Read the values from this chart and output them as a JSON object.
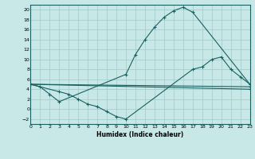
{
  "xlabel": "Humidex (Indice chaleur)",
  "bg_color": "#c8e8e8",
  "line_color": "#1a6060",
  "grid_color": "#a8cccc",
  "xlim": [
    0,
    23
  ],
  "ylim": [
    -3,
    21
  ],
  "xticks": [
    0,
    1,
    2,
    3,
    4,
    5,
    6,
    7,
    8,
    9,
    10,
    11,
    12,
    13,
    14,
    15,
    16,
    17,
    18,
    19,
    20,
    21,
    22,
    23
  ],
  "yticks": [
    -2,
    0,
    2,
    4,
    6,
    8,
    10,
    12,
    14,
    16,
    18,
    20
  ],
  "curve1": {
    "x": [
      0,
      1,
      2,
      3,
      10,
      11,
      12,
      13,
      14,
      15,
      16,
      17,
      23
    ],
    "y": [
      5.0,
      4.5,
      3.0,
      1.5,
      7.0,
      11.0,
      14.0,
      16.5,
      18.5,
      19.8,
      20.5,
      19.5,
      5.0
    ]
  },
  "curve2": {
    "x": [
      0,
      3,
      4,
      5,
      6,
      7,
      8,
      9,
      10,
      17,
      18,
      19,
      20,
      21,
      22,
      23
    ],
    "y": [
      5.0,
      3.5,
      3.0,
      2.0,
      1.0,
      0.5,
      -0.5,
      -1.5,
      -2.0,
      8.0,
      8.5,
      10.0,
      10.5,
      8.0,
      6.5,
      5.0
    ]
  },
  "line1": {
    "x": [
      0,
      23
    ],
    "y": [
      5.0,
      4.5
    ]
  },
  "line2": {
    "x": [
      0,
      23
    ],
    "y": [
      5.0,
      4.0
    ]
  }
}
